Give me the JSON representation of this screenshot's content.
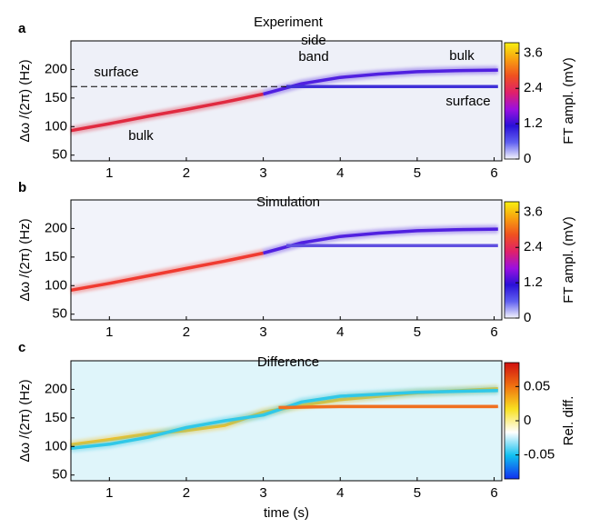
{
  "chart_data": [
    {
      "type": "heatmap",
      "panel": "a",
      "title": "Experiment",
      "ylabel": "Δω /(2π) (Hz)",
      "xlim": [
        0.5,
        6.1
      ],
      "xticks": [
        1,
        2,
        3,
        4,
        5,
        6
      ],
      "ylim": [
        40,
        250
      ],
      "yticks": [
        50,
        100,
        150,
        200
      ],
      "background": "#eef0f8",
      "series": [
        {
          "color": "#e02a40",
          "x": [
            0.5,
            1,
            1.5,
            2,
            2.5,
            3
          ],
          "values": [
            93,
            105,
            118,
            130,
            143,
            157
          ]
        },
        {
          "color": "#5020e0",
          "x": [
            3,
            3.5,
            4,
            4.5,
            5,
            5.5,
            6.05
          ],
          "values": [
            157,
            175,
            186,
            192,
            196,
            198,
            199
          ]
        },
        {
          "color": "#4030d8",
          "x": [
            3.3,
            4,
            5,
            6.05
          ],
          "values": [
            170,
            170,
            170,
            170
          ]
        }
      ],
      "reference_line": 170,
      "annotations": [
        "surface",
        "side",
        "band",
        "bulk",
        "surface",
        "bulk"
      ],
      "colorbar": {
        "label": "FT ampl. (mV)",
        "lim": [
          0,
          3.95
        ],
        "ticks": [
          0,
          1.2,
          2.4,
          3.6
        ],
        "colormap": [
          "#f4f4fb",
          "#6060f0",
          "#2a10d8",
          "#9b10e0",
          "#e0206a",
          "#f05020",
          "#f8a010",
          "#f8f010"
        ]
      }
    },
    {
      "type": "heatmap",
      "panel": "b",
      "title": "Simulation",
      "ylabel": "Δω /(2π) (Hz)",
      "xlim": [
        0.5,
        6.1
      ],
      "xticks": [
        1,
        2,
        3,
        4,
        5,
        6
      ],
      "ylim": [
        40,
        250
      ],
      "yticks": [
        50,
        100,
        150,
        200
      ],
      "background": "#f2f3fa",
      "series": [
        {
          "color": "#f03a30",
          "x": [
            0.5,
            1,
            1.5,
            2,
            2.5,
            3
          ],
          "values": [
            92,
            104,
            117,
            130,
            143,
            157
          ]
        },
        {
          "color": "#5020e0",
          "x": [
            3,
            3.5,
            4,
            4.5,
            5,
            5.5,
            6.05
          ],
          "values": [
            157,
            175,
            186,
            192,
            196,
            198,
            199
          ]
        },
        {
          "color": "#6050e0",
          "x": [
            3.3,
            4,
            5,
            6.05
          ],
          "values": [
            170,
            170,
            170,
            170
          ]
        }
      ],
      "colorbar": {
        "label": "FT ampl. (mV)",
        "lim": [
          0,
          3.95
        ],
        "ticks": [
          0,
          1.2,
          2.4,
          3.6
        ],
        "colormap": [
          "#f4f4fb",
          "#6060f0",
          "#2a10d8",
          "#9b10e0",
          "#e0206a",
          "#f05020",
          "#f8a010",
          "#f8f010"
        ]
      }
    },
    {
      "type": "heatmap",
      "panel": "c",
      "title": "Difference",
      "ylabel": "Δω /(2π) (Hz)",
      "xlabel": "time (s)",
      "xlim": [
        0.5,
        6.1
      ],
      "xticks": [
        1,
        2,
        3,
        4,
        5,
        6
      ],
      "ylim": [
        40,
        250
      ],
      "yticks": [
        50,
        100,
        150,
        200
      ],
      "background": "#dff5fa",
      "series": [
        {
          "color": "#f8c020",
          "x": [
            0.5,
            1,
            1.5,
            2,
            2.5,
            3,
            3.5,
            4,
            5,
            6.05
          ],
          "values": [
            103,
            112,
            122,
            128,
            137,
            160,
            172,
            182,
            194,
            201
          ]
        },
        {
          "color": "#30c8e8",
          "x": [
            0.5,
            1,
            1.5,
            2,
            2.5,
            3,
            3.5,
            4,
            5,
            6.05
          ],
          "values": [
            97,
            104,
            116,
            133,
            145,
            155,
            178,
            188,
            195,
            198
          ]
        },
        {
          "color": "#f07020",
          "x": [
            3.2,
            4,
            5,
            6.05
          ],
          "values": [
            168,
            170,
            170,
            170
          ]
        }
      ],
      "colorbar": {
        "label": "Rel. diff.",
        "lim": [
          -0.085,
          0.085
        ],
        "ticks": [
          -0.05,
          0,
          0.05
        ],
        "colormap": [
          "#1030f0",
          "#10c0f0",
          "#ffffff",
          "#f8e020",
          "#f07010",
          "#d01010"
        ]
      }
    }
  ]
}
